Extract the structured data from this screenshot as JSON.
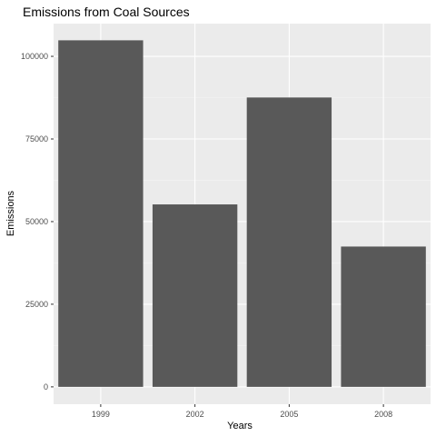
{
  "chart_data": {
    "type": "bar",
    "title": "Emissions from Coal Sources",
    "xlabel": "Years",
    "ylabel": "Emissions",
    "categories": [
      "1999",
      "2002",
      "2005",
      "2008"
    ],
    "values": [
      104850,
      55200,
      87550,
      42450
    ],
    "ylim": [
      -5250,
      109900
    ],
    "yticks": [
      0,
      25000,
      50000,
      75000,
      100000
    ],
    "ytick_labels": [
      "0",
      "25000",
      "50000",
      "75000",
      "100000"
    ],
    "grid": true,
    "legend": "none",
    "colors": {
      "bar": "#595959",
      "panel": "#ebebeb",
      "grid_major": "#ffffff",
      "grid_minor": "#f5f5f5",
      "tick_label": "#4d4d4d",
      "tick_mark": "#333333",
      "text": "#000000"
    }
  }
}
